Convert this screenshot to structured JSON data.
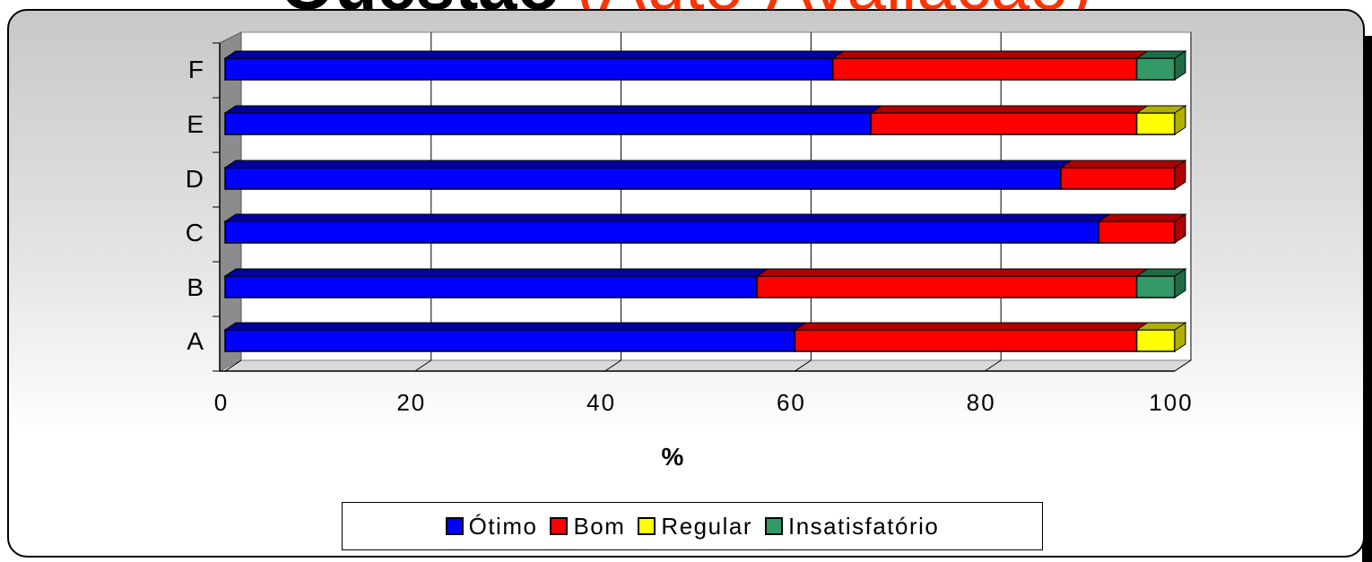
{
  "title": {
    "main": "Questão",
    "accent": "(Auto-Avaliação)"
  },
  "colors": {
    "otimo": "#0000ff",
    "bom": "#ff0000",
    "regular": "#ffff00",
    "insatisfatorio": "#339966",
    "otimo_top": "#0000a0",
    "bom_top": "#b00000",
    "regular_top": "#b0b000",
    "insatisfatorio_top": "#1f6b45"
  },
  "chart_data": {
    "type": "bar",
    "orientation": "horizontal",
    "stacked": true,
    "categories": [
      "A",
      "B",
      "C",
      "D",
      "E",
      "F"
    ],
    "series": [
      {
        "name": "Ótimo",
        "values": [
          60,
          56,
          92,
          88,
          68,
          64
        ]
      },
      {
        "name": "Bom",
        "values": [
          36,
          40,
          8,
          12,
          28,
          32
        ]
      },
      {
        "name": "Regular",
        "values": [
          4,
          0,
          0,
          0,
          4,
          0
        ]
      },
      {
        "name": "Insatisfatório",
        "values": [
          0,
          4,
          0,
          0,
          0,
          4
        ]
      }
    ],
    "xlabel": "%",
    "ylabel": "",
    "xlim": [
      0,
      100
    ],
    "xticks": [
      "0",
      "20",
      "40",
      "60",
      "80",
      "100"
    ],
    "grid": true,
    "legend_position": "bottom"
  }
}
